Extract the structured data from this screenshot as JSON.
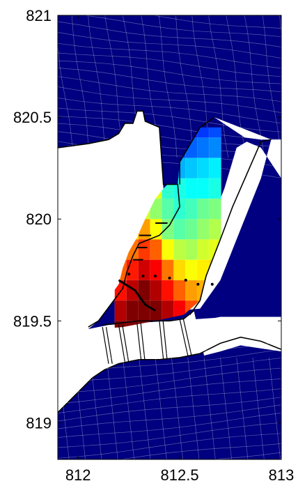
{
  "chart_data": {
    "type": "heatmap",
    "title": "",
    "xlabel": "",
    "ylabel": "",
    "xlim": [
      811.9,
      813
    ],
    "ylim": [
      818.82,
      821
    ],
    "x_ticks": [
      {
        "value": 812,
        "label": "812"
      },
      {
        "value": 812.5,
        "label": "812.5"
      },
      {
        "value": 813,
        "label": "813"
      }
    ],
    "y_ticks": [
      {
        "value": 821,
        "label": "821"
      },
      {
        "value": 820.5,
        "label": "820.5"
      },
      {
        "value": 820,
        "label": "820"
      },
      {
        "value": 819.5,
        "label": "819.5"
      },
      {
        "value": 819,
        "label": "819"
      }
    ],
    "grid": false,
    "colormap": "jet",
    "colors": {
      "background": "#000080",
      "land": "#ffffff",
      "mesh_line": "#ffffff",
      "coastline": "#000000",
      "jet_stops": [
        "#00007f",
        "#0000ff",
        "#007fff",
        "#00ffff",
        "#7fff7f",
        "#ffff00",
        "#ff7f00",
        "#ff0000",
        "#7f0000"
      ]
    },
    "basin_field": {
      "x0": 812.18,
      "dx": 0.058,
      "y_top": 821.0,
      "dy": 0.1,
      "values": [
        [
          0.02,
          0.03,
          0.03,
          0.04,
          0.05,
          0.05,
          0.06,
          0.06,
          0.07
        ],
        [
          0.03,
          0.04,
          0.05,
          0.05,
          0.06,
          0.07,
          0.08,
          0.08,
          0.09
        ],
        [
          0.04,
          0.05,
          0.06,
          0.07,
          0.08,
          0.09,
          0.1,
          0.11,
          0.12
        ],
        [
          0.05,
          0.06,
          0.07,
          0.08,
          0.09,
          0.1,
          0.11,
          0.12,
          0.13
        ],
        [
          0.06,
          0.07,
          0.08,
          0.09,
          0.1,
          0.11,
          0.12,
          0.13,
          0.15
        ],
        [
          0.07,
          0.08,
          0.1,
          0.11,
          0.12,
          0.14,
          0.16,
          0.18,
          0.2
        ],
        [
          0.1,
          0.11,
          0.14,
          0.16,
          0.18,
          0.2,
          0.22,
          0.24,
          0.26
        ],
        [
          0.12,
          0.18,
          0.22,
          0.25,
          0.27,
          0.3,
          0.32,
          0.34,
          0.36
        ],
        [
          0.5,
          0.5,
          0.5,
          0.6,
          0.42,
          0.4,
          0.38,
          0.38,
          0.4
        ],
        [
          0.45,
          0.55,
          0.58,
          0.52,
          0.46,
          0.42,
          0.44,
          0.48,
          0.5
        ],
        [
          0.55,
          0.65,
          0.72,
          0.62,
          0.5,
          0.46,
          0.48,
          0.52,
          0.55
        ],
        [
          0.7,
          0.76,
          0.82,
          0.78,
          0.62,
          0.56,
          0.54,
          0.58,
          0.6
        ],
        [
          0.78,
          0.85,
          0.92,
          0.88,
          0.76,
          0.66,
          0.62,
          0.64,
          0.66
        ],
        [
          0.86,
          0.94,
          1.0,
          0.95,
          0.86,
          0.78,
          0.72,
          0.7,
          0.7
        ],
        [
          0.95,
          1.0,
          1.0,
          1.0,
          0.95,
          0.88,
          0.8,
          0.75,
          0.72
        ],
        [
          1.0,
          1.0,
          1.0,
          1.0,
          1.0,
          0.96,
          0.88,
          0.82,
          0.78
        ],
        [
          1.0,
          1.0,
          1.0,
          1.0,
          1.0,
          1.0,
          0.92,
          0.86,
          0.82
        ]
      ]
    }
  }
}
